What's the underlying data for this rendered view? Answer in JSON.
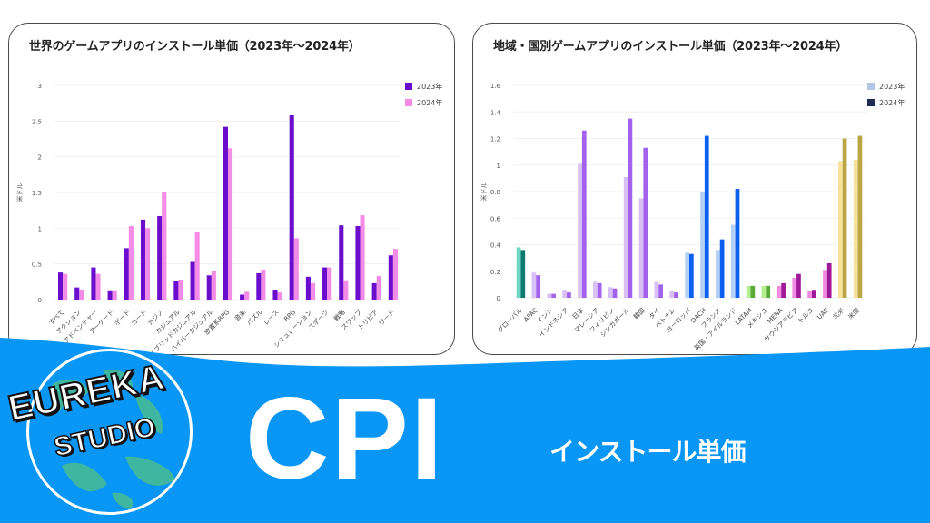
{
  "left_card": {
    "title": "世界のゲームアプリのインストール単価（2023年〜2024年）"
  },
  "right_card": {
    "title": "地域・国別ゲームアプリのインストール単価（2023年〜2024年）"
  },
  "banner": {
    "logo_line1": "EUREKA",
    "logo_line2": "STUDIO",
    "headline": "CPI",
    "subheadline": "インストール単価",
    "background_color": "#0a96f5"
  },
  "chart_data": [
    {
      "type": "bar",
      "title": "世界のゲームアプリのインストール単価（2023年〜2024年）",
      "xlabel": "",
      "ylabel": "米ドル",
      "ylim": [
        0,
        3
      ],
      "yticks": [
        0,
        0.5,
        1,
        1.5,
        2,
        2.5,
        3
      ],
      "grid": true,
      "legend_position": "top-right",
      "categories": [
        "すべて",
        "アクション",
        "アドベンチャー",
        "アーケード",
        "ボード",
        "カード",
        "カジノ",
        "カジュアル",
        "ハイブリッドカジュアル",
        "ハイパーカジュアル",
        "放置系RPG",
        "音楽",
        "パズル",
        "レース",
        "RPG",
        "シミュレーション",
        "スポーツ",
        "戦略",
        "スワップ",
        "トリビア",
        "ワード"
      ],
      "series": [
        {
          "name": "2023年",
          "color": "#6a0dcc",
          "values": [
            0.38,
            0.17,
            0.45,
            0.13,
            0.72,
            1.12,
            1.17,
            0.26,
            0.54,
            0.34,
            2.42,
            0.07,
            0.37,
            0.14,
            2.58,
            0.32,
            0.45,
            1.04,
            1.03,
            0.23,
            0.62
          ]
        },
        {
          "name": "2024年",
          "color": "#f48be6",
          "values": [
            0.36,
            0.14,
            0.36,
            0.13,
            1.03,
            1.0,
            1.5,
            0.28,
            0.95,
            0.4,
            2.12,
            0.11,
            0.42,
            0.1,
            0.86,
            0.23,
            0.45,
            0.27,
            1.18,
            0.33,
            0.71
          ]
        }
      ]
    },
    {
      "type": "bar",
      "title": "地域・国別ゲームアプリのインストール単価（2023年〜2024年）",
      "xlabel": "",
      "ylabel": "米ドル",
      "ylim": [
        0,
        1.6
      ],
      "yticks": [
        0,
        0.2,
        0.4,
        0.6,
        0.8,
        1,
        1.2,
        1.4,
        1.6
      ],
      "grid": true,
      "legend_position": "top-right",
      "legend": [
        {
          "name": "2023年",
          "color": "#b4c6e4"
        },
        {
          "name": "2024年",
          "color": "#1f2a55"
        }
      ],
      "categories": [
        "グローバル",
        "APAC",
        "インド",
        "インドネシア",
        "日本",
        "マレーシア",
        "フィリピン",
        "シンガポール",
        "韓国",
        "タイ",
        "ベトナム",
        "ヨーロッパ",
        "DACH",
        "フランス",
        "英国・アイルランド",
        "LATAM",
        "メキシコ",
        "MENA",
        "サウジアラビア",
        "トルコ",
        "UAE",
        "北米",
        "米国"
      ],
      "series": [
        {
          "name": "2023年",
          "values": [
            0.38,
            0.19,
            0.03,
            0.06,
            1.01,
            0.12,
            0.08,
            0.91,
            0.75,
            0.12,
            0.05,
            0.34,
            0.8,
            0.36,
            0.55,
            0.09,
            0.09,
            0.09,
            0.15,
            0.05,
            0.21,
            1.03,
            1.04
          ]
        },
        {
          "name": "2024年",
          "values": [
            0.36,
            0.17,
            0.03,
            0.04,
            1.26,
            0.11,
            0.07,
            1.35,
            1.13,
            0.1,
            0.04,
            0.33,
            1.22,
            0.44,
            0.82,
            0.09,
            0.09,
            0.11,
            0.18,
            0.06,
            0.26,
            1.2,
            1.22
          ]
        }
      ],
      "bar_colors_2023": [
        "#6fd8c0",
        "#d8c0f4",
        "#d8c0f4",
        "#d8c0f4",
        "#d8c0f4",
        "#d8c0f4",
        "#d8c0f4",
        "#d8c0f4",
        "#d8c0f4",
        "#d8c0f4",
        "#d8c0f4",
        "#b4d0f4",
        "#b4d0f4",
        "#b4d0f4",
        "#b4d0f4",
        "#b4ee90",
        "#b4ee90",
        "#f48ae0",
        "#f48ae0",
        "#f48ae0",
        "#f48ae0",
        "#f6e29a",
        "#f6e29a"
      ],
      "bar_colors_2024": [
        "#0c7a6e",
        "#a362ee",
        "#a362ee",
        "#a362ee",
        "#a362ee",
        "#a362ee",
        "#a362ee",
        "#a362ee",
        "#a362ee",
        "#a362ee",
        "#a362ee",
        "#0a5ef0",
        "#0a5ef0",
        "#0a5ef0",
        "#0a5ef0",
        "#5aaa3a",
        "#5aaa3a",
        "#a0189a",
        "#a0189a",
        "#a0189a",
        "#a0189a",
        "#bba646",
        "#bba646"
      ]
    }
  ]
}
